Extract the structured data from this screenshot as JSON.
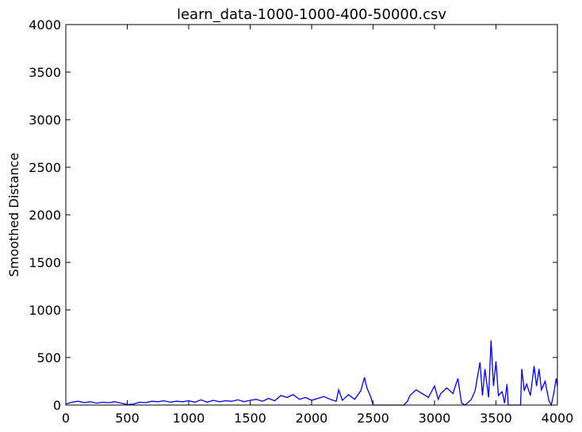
{
  "chart_data": {
    "type": "line",
    "title": "learn_data-1000-1000-400-50000.csv",
    "y_label": "Smoothed Distance",
    "xlim": [
      0,
      4000
    ],
    "ylim": [
      0,
      4000
    ],
    "xticks": [
      0,
      500,
      1000,
      1500,
      2000,
      2500,
      3000,
      3500,
      4000
    ],
    "yticks": [
      0,
      500,
      1000,
      1500,
      2000,
      2500,
      3000,
      3500,
      4000
    ],
    "grid": false,
    "series": [
      {
        "color": "#0000ff",
        "x": [
          0,
          50,
          100,
          150,
          200,
          250,
          300,
          350,
          400,
          450,
          500,
          550,
          600,
          650,
          700,
          750,
          800,
          850,
          900,
          950,
          1000,
          1050,
          1100,
          1150,
          1200,
          1250,
          1300,
          1350,
          1400,
          1450,
          1500,
          1550,
          1600,
          1650,
          1700,
          1750,
          1800,
          1850,
          1900,
          1950,
          2000,
          2050,
          2100,
          2150,
          2200,
          2220,
          2250,
          2300,
          2350,
          2400,
          2430,
          2450,
          2480,
          2500,
          2550,
          2600,
          2650,
          2700,
          2750,
          2780,
          2800,
          2850,
          2900,
          2950,
          3000,
          3030,
          3050,
          3100,
          3150,
          3190,
          3220,
          3250,
          3300,
          3330,
          3370,
          3390,
          3410,
          3440,
          3460,
          3480,
          3500,
          3520,
          3550,
          3570,
          3590,
          3600,
          3650,
          3700,
          3710,
          3730,
          3750,
          3780,
          3810,
          3830,
          3850,
          3870,
          3900,
          3930,
          3950,
          3970,
          3990,
          4000
        ],
        "values": [
          10,
          30,
          40,
          25,
          35,
          20,
          30,
          25,
          35,
          20,
          5,
          10,
          30,
          25,
          40,
          35,
          45,
          30,
          40,
          35,
          45,
          30,
          55,
          30,
          50,
          35,
          45,
          40,
          55,
          35,
          50,
          60,
          40,
          70,
          45,
          100,
          80,
          110,
          60,
          80,
          50,
          70,
          90,
          60,
          40,
          160,
          50,
          110,
          60,
          150,
          290,
          180,
          90,
          0,
          0,
          0,
          0,
          0,
          0,
          40,
          100,
          160,
          120,
          80,
          200,
          60,
          120,
          180,
          120,
          280,
          20,
          0,
          60,
          150,
          450,
          100,
          380,
          80,
          680,
          200,
          460,
          100,
          140,
          20,
          220,
          0,
          0,
          0,
          380,
          150,
          220,
          100,
          410,
          200,
          380,
          160,
          250,
          50,
          0,
          120,
          280,
          200
        ]
      }
    ]
  }
}
